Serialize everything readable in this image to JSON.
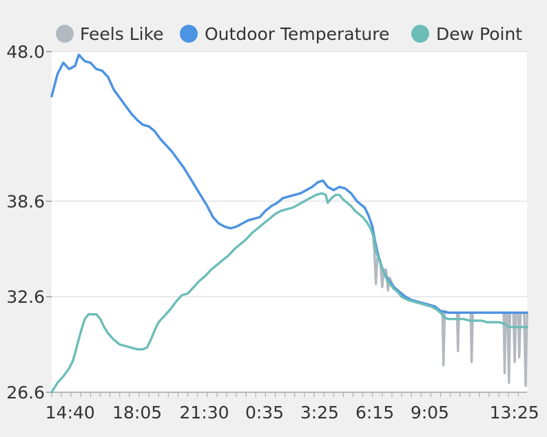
{
  "chart_data": {
    "type": "line",
    "title": "",
    "xlabel": "",
    "ylabel": "",
    "ylim": [
      26.6,
      48.0
    ],
    "y_ticks": [
      "48.0",
      "38.6",
      "32.6",
      "26.6"
    ],
    "x_tick_labels": [
      "14:40",
      "18:05",
      "21:30",
      "0:35",
      "3:25",
      "6:15",
      "9:05",
      "13:25"
    ],
    "grid": "horizontal",
    "legend": "top",
    "x_unit": "hours since first sample (first sample ≈ 13:40)",
    "series": [
      {
        "name": "Feels Like",
        "color": "#b3b9c0",
        "points": [
          [
            0.0,
            45.2
          ],
          [
            0.3,
            46.6
          ],
          [
            0.6,
            47.3
          ],
          [
            0.9,
            46.9
          ],
          [
            1.2,
            47.1
          ],
          [
            1.4,
            47.8
          ],
          [
            1.7,
            47.4
          ],
          [
            2.0,
            47.3
          ],
          [
            2.3,
            46.9
          ],
          [
            2.6,
            46.8
          ],
          [
            2.9,
            46.4
          ],
          [
            3.2,
            45.6
          ],
          [
            3.5,
            45.1
          ],
          [
            3.8,
            44.6
          ],
          [
            4.1,
            44.1
          ],
          [
            4.4,
            43.7
          ],
          [
            4.7,
            43.4
          ],
          [
            5.0,
            43.3
          ],
          [
            5.3,
            43.0
          ],
          [
            5.6,
            42.5
          ],
          [
            5.9,
            42.1
          ],
          [
            6.2,
            41.7
          ],
          [
            6.5,
            41.2
          ],
          [
            6.8,
            40.7
          ],
          [
            7.1,
            40.1
          ],
          [
            7.4,
            39.5
          ],
          [
            7.7,
            38.9
          ],
          [
            8.0,
            38.3
          ],
          [
            8.3,
            37.6
          ],
          [
            8.6,
            37.2
          ],
          [
            8.9,
            37.0
          ],
          [
            9.2,
            36.9
          ],
          [
            9.5,
            37.0
          ],
          [
            9.8,
            37.2
          ],
          [
            10.1,
            37.4
          ],
          [
            10.4,
            37.5
          ],
          [
            10.7,
            37.6
          ],
          [
            11.0,
            38.0
          ],
          [
            11.3,
            38.3
          ],
          [
            11.6,
            38.5
          ],
          [
            11.9,
            38.8
          ],
          [
            12.2,
            38.9
          ],
          [
            12.5,
            39.0
          ],
          [
            12.8,
            39.1
          ],
          [
            13.1,
            39.3
          ],
          [
            13.4,
            39.5
          ],
          [
            13.7,
            39.8
          ],
          [
            13.95,
            39.9
          ],
          [
            14.2,
            39.5
          ],
          [
            14.5,
            39.3
          ],
          [
            14.8,
            39.5
          ],
          [
            15.1,
            39.4
          ],
          [
            15.4,
            39.1
          ],
          [
            15.7,
            38.6
          ],
          [
            15.9,
            38.4
          ],
          [
            16.1,
            38.2
          ],
          [
            16.3,
            37.7
          ],
          [
            16.5,
            37.0
          ],
          [
            16.6,
            35.4
          ],
          [
            16.68,
            33.4
          ],
          [
            16.75,
            35.0
          ],
          [
            16.9,
            34.9
          ],
          [
            17.0,
            33.2
          ],
          [
            17.08,
            34.3
          ],
          [
            17.2,
            34.3
          ],
          [
            17.3,
            33.0
          ],
          [
            17.38,
            33.8
          ],
          [
            17.6,
            33.2
          ],
          [
            17.9,
            32.9
          ],
          [
            18.2,
            32.6
          ],
          [
            18.5,
            32.4
          ],
          [
            18.8,
            32.3
          ],
          [
            19.1,
            32.2
          ],
          [
            19.4,
            32.1
          ],
          [
            19.7,
            32.0
          ],
          [
            19.9,
            31.8
          ],
          [
            20.0,
            31.7
          ],
          [
            20.1,
            31.7
          ],
          [
            20.15,
            28.3
          ],
          [
            20.22,
            31.7
          ],
          [
            20.4,
            31.6
          ],
          [
            20.6,
            31.6
          ],
          [
            20.85,
            31.6
          ],
          [
            20.9,
            29.2
          ],
          [
            20.95,
            31.6
          ],
          [
            21.3,
            31.6
          ],
          [
            21.55,
            31.6
          ],
          [
            21.6,
            28.5
          ],
          [
            21.66,
            31.6
          ],
          [
            22.0,
            31.6
          ],
          [
            22.4,
            31.6
          ],
          [
            22.7,
            31.6
          ],
          [
            22.9,
            31.6
          ],
          [
            23.1,
            31.6
          ],
          [
            23.25,
            31.6
          ],
          [
            23.3,
            27.8
          ],
          [
            23.36,
            31.6
          ],
          [
            23.45,
            31.6
          ],
          [
            23.52,
            27.2
          ],
          [
            23.58,
            31.6
          ],
          [
            23.75,
            31.6
          ],
          [
            23.82,
            28.5
          ],
          [
            23.88,
            31.6
          ],
          [
            24.0,
            31.6
          ],
          [
            24.05,
            28.8
          ],
          [
            24.12,
            31.6
          ],
          [
            24.3,
            31.6
          ],
          [
            24.38,
            27.0
          ],
          [
            24.45,
            31.6
          ]
        ]
      },
      {
        "name": "Outdoor Temperature",
        "color": "#4c93e3",
        "points": [
          [
            0.0,
            45.2
          ],
          [
            0.3,
            46.6
          ],
          [
            0.6,
            47.3
          ],
          [
            0.9,
            46.9
          ],
          [
            1.2,
            47.1
          ],
          [
            1.4,
            47.8
          ],
          [
            1.7,
            47.4
          ],
          [
            2.0,
            47.3
          ],
          [
            2.3,
            46.9
          ],
          [
            2.6,
            46.8
          ],
          [
            2.9,
            46.4
          ],
          [
            3.2,
            45.6
          ],
          [
            3.5,
            45.1
          ],
          [
            3.8,
            44.6
          ],
          [
            4.1,
            44.1
          ],
          [
            4.4,
            43.7
          ],
          [
            4.7,
            43.4
          ],
          [
            5.0,
            43.3
          ],
          [
            5.3,
            43.0
          ],
          [
            5.6,
            42.5
          ],
          [
            5.9,
            42.1
          ],
          [
            6.2,
            41.7
          ],
          [
            6.5,
            41.2
          ],
          [
            6.8,
            40.7
          ],
          [
            7.1,
            40.1
          ],
          [
            7.4,
            39.5
          ],
          [
            7.7,
            38.9
          ],
          [
            8.0,
            38.3
          ],
          [
            8.3,
            37.6
          ],
          [
            8.6,
            37.2
          ],
          [
            8.9,
            37.0
          ],
          [
            9.2,
            36.9
          ],
          [
            9.5,
            37.0
          ],
          [
            9.8,
            37.2
          ],
          [
            10.1,
            37.4
          ],
          [
            10.4,
            37.5
          ],
          [
            10.7,
            37.6
          ],
          [
            11.0,
            38.0
          ],
          [
            11.3,
            38.3
          ],
          [
            11.6,
            38.5
          ],
          [
            11.9,
            38.8
          ],
          [
            12.2,
            38.9
          ],
          [
            12.5,
            39.0
          ],
          [
            12.8,
            39.1
          ],
          [
            13.1,
            39.3
          ],
          [
            13.4,
            39.5
          ],
          [
            13.7,
            39.8
          ],
          [
            13.95,
            39.9
          ],
          [
            14.2,
            39.5
          ],
          [
            14.5,
            39.3
          ],
          [
            14.8,
            39.5
          ],
          [
            15.1,
            39.4
          ],
          [
            15.4,
            39.1
          ],
          [
            15.7,
            38.6
          ],
          [
            15.9,
            38.4
          ],
          [
            16.1,
            38.2
          ],
          [
            16.3,
            37.7
          ],
          [
            16.5,
            37.0
          ],
          [
            16.65,
            36.0
          ],
          [
            16.8,
            35.2
          ],
          [
            16.95,
            34.6
          ],
          [
            17.1,
            34.1
          ],
          [
            17.3,
            33.7
          ],
          [
            17.6,
            33.2
          ],
          [
            17.9,
            32.9
          ],
          [
            18.2,
            32.6
          ],
          [
            18.5,
            32.4
          ],
          [
            18.8,
            32.3
          ],
          [
            19.1,
            32.2
          ],
          [
            19.4,
            32.1
          ],
          [
            19.7,
            32.0
          ],
          [
            19.9,
            31.8
          ],
          [
            20.0,
            31.7
          ],
          [
            20.4,
            31.6
          ],
          [
            20.9,
            31.6
          ],
          [
            21.5,
            31.6
          ],
          [
            22.0,
            31.6
          ],
          [
            22.5,
            31.6
          ],
          [
            23.0,
            31.6
          ],
          [
            23.5,
            31.6
          ],
          [
            24.0,
            31.6
          ],
          [
            24.45,
            31.6
          ]
        ]
      },
      {
        "name": "Dew Point",
        "color": "#6cbdb8",
        "points": [
          [
            0.0,
            26.6
          ],
          [
            0.3,
            27.2
          ],
          [
            0.6,
            27.6
          ],
          [
            0.9,
            28.1
          ],
          [
            1.1,
            28.6
          ],
          [
            1.3,
            29.5
          ],
          [
            1.5,
            30.4
          ],
          [
            1.7,
            31.2
          ],
          [
            1.9,
            31.5
          ],
          [
            2.1,
            31.5
          ],
          [
            2.3,
            31.5
          ],
          [
            2.5,
            31.2
          ],
          [
            2.7,
            30.7
          ],
          [
            2.9,
            30.3
          ],
          [
            3.2,
            29.9
          ],
          [
            3.5,
            29.6
          ],
          [
            3.8,
            29.5
          ],
          [
            4.1,
            29.4
          ],
          [
            4.4,
            29.3
          ],
          [
            4.7,
            29.3
          ],
          [
            4.9,
            29.4
          ],
          [
            5.1,
            29.9
          ],
          [
            5.3,
            30.5
          ],
          [
            5.5,
            31.0
          ],
          [
            5.8,
            31.4
          ],
          [
            6.1,
            31.8
          ],
          [
            6.4,
            32.3
          ],
          [
            6.7,
            32.7
          ],
          [
            7.0,
            32.8
          ],
          [
            7.3,
            33.2
          ],
          [
            7.6,
            33.6
          ],
          [
            7.9,
            33.9
          ],
          [
            8.2,
            34.3
          ],
          [
            8.5,
            34.6
          ],
          [
            8.8,
            34.9
          ],
          [
            9.1,
            35.2
          ],
          [
            9.4,
            35.6
          ],
          [
            9.7,
            35.9
          ],
          [
            10.0,
            36.2
          ],
          [
            10.3,
            36.6
          ],
          [
            10.6,
            36.9
          ],
          [
            10.9,
            37.2
          ],
          [
            11.2,
            37.5
          ],
          [
            11.5,
            37.8
          ],
          [
            11.8,
            38.0
          ],
          [
            12.1,
            38.1
          ],
          [
            12.4,
            38.2
          ],
          [
            12.7,
            38.4
          ],
          [
            13.0,
            38.6
          ],
          [
            13.3,
            38.8
          ],
          [
            13.6,
            39.0
          ],
          [
            13.9,
            39.1
          ],
          [
            14.1,
            39.0
          ],
          [
            14.2,
            38.5
          ],
          [
            14.4,
            38.8
          ],
          [
            14.6,
            39.0
          ],
          [
            14.8,
            39.0
          ],
          [
            15.0,
            38.7
          ],
          [
            15.2,
            38.5
          ],
          [
            15.4,
            38.3
          ],
          [
            15.6,
            38.0
          ],
          [
            15.8,
            37.8
          ],
          [
            16.0,
            37.6
          ],
          [
            16.2,
            37.3
          ],
          [
            16.4,
            36.9
          ],
          [
            16.55,
            36.4
          ],
          [
            16.7,
            35.4
          ],
          [
            16.85,
            34.9
          ],
          [
            17.0,
            34.4
          ],
          [
            17.2,
            33.8
          ],
          [
            17.4,
            33.4
          ],
          [
            17.6,
            33.1
          ],
          [
            17.8,
            32.9
          ],
          [
            18.0,
            32.6
          ],
          [
            18.3,
            32.4
          ],
          [
            18.6,
            32.3
          ],
          [
            18.9,
            32.2
          ],
          [
            19.2,
            32.1
          ],
          [
            19.5,
            32.0
          ],
          [
            19.8,
            31.8
          ],
          [
            20.0,
            31.6
          ],
          [
            20.2,
            31.3
          ],
          [
            20.4,
            31.2
          ],
          [
            20.6,
            31.2
          ],
          [
            20.9,
            31.2
          ],
          [
            21.2,
            31.2
          ],
          [
            21.5,
            31.1
          ],
          [
            21.8,
            31.1
          ],
          [
            22.1,
            31.1
          ],
          [
            22.4,
            31.0
          ],
          [
            22.7,
            31.0
          ],
          [
            23.0,
            31.0
          ],
          [
            23.3,
            30.9
          ],
          [
            23.5,
            30.7
          ],
          [
            23.7,
            30.7
          ],
          [
            24.0,
            30.7
          ],
          [
            24.45,
            30.7
          ]
        ]
      }
    ]
  }
}
